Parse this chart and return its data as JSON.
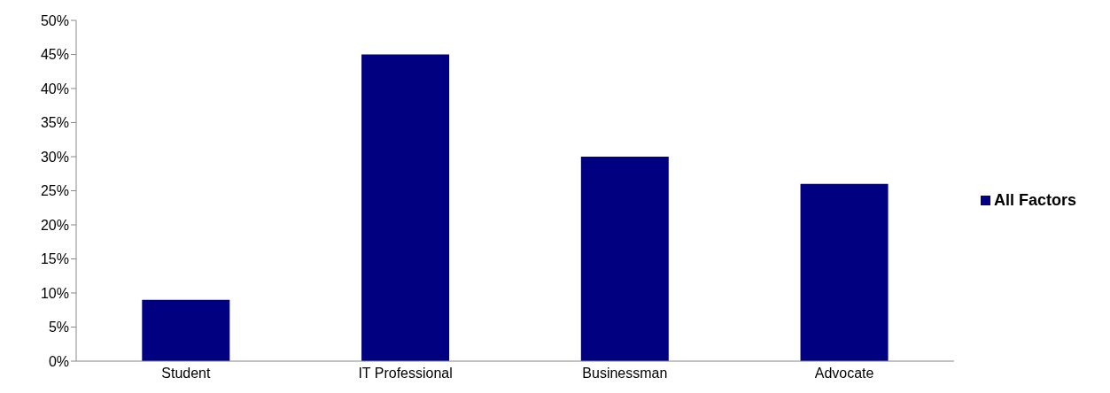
{
  "chart_data": {
    "type": "bar",
    "categories": [
      "Student",
      "IT Professional",
      "Businessman",
      "Advocate"
    ],
    "series": [
      {
        "name": "All Factors",
        "color": "#000080",
        "values": [
          9,
          45,
          30,
          26
        ]
      }
    ],
    "ylim": [
      0,
      50
    ],
    "yticks": [
      {
        "value": 0,
        "label": "0%"
      },
      {
        "value": 5,
        "label": "5%"
      },
      {
        "value": 10,
        "label": "10%"
      },
      {
        "value": 15,
        "label": "15%"
      },
      {
        "value": 20,
        "label": "20%"
      },
      {
        "value": 25,
        "label": "25%"
      },
      {
        "value": 30,
        "label": "30%"
      },
      {
        "value": 35,
        "label": "35%"
      },
      {
        "value": 40,
        "label": "40%"
      },
      {
        "value": 45,
        "label": "45%"
      },
      {
        "value": 50,
        "label": "50%"
      }
    ],
    "grid": false,
    "legend": "right"
  }
}
